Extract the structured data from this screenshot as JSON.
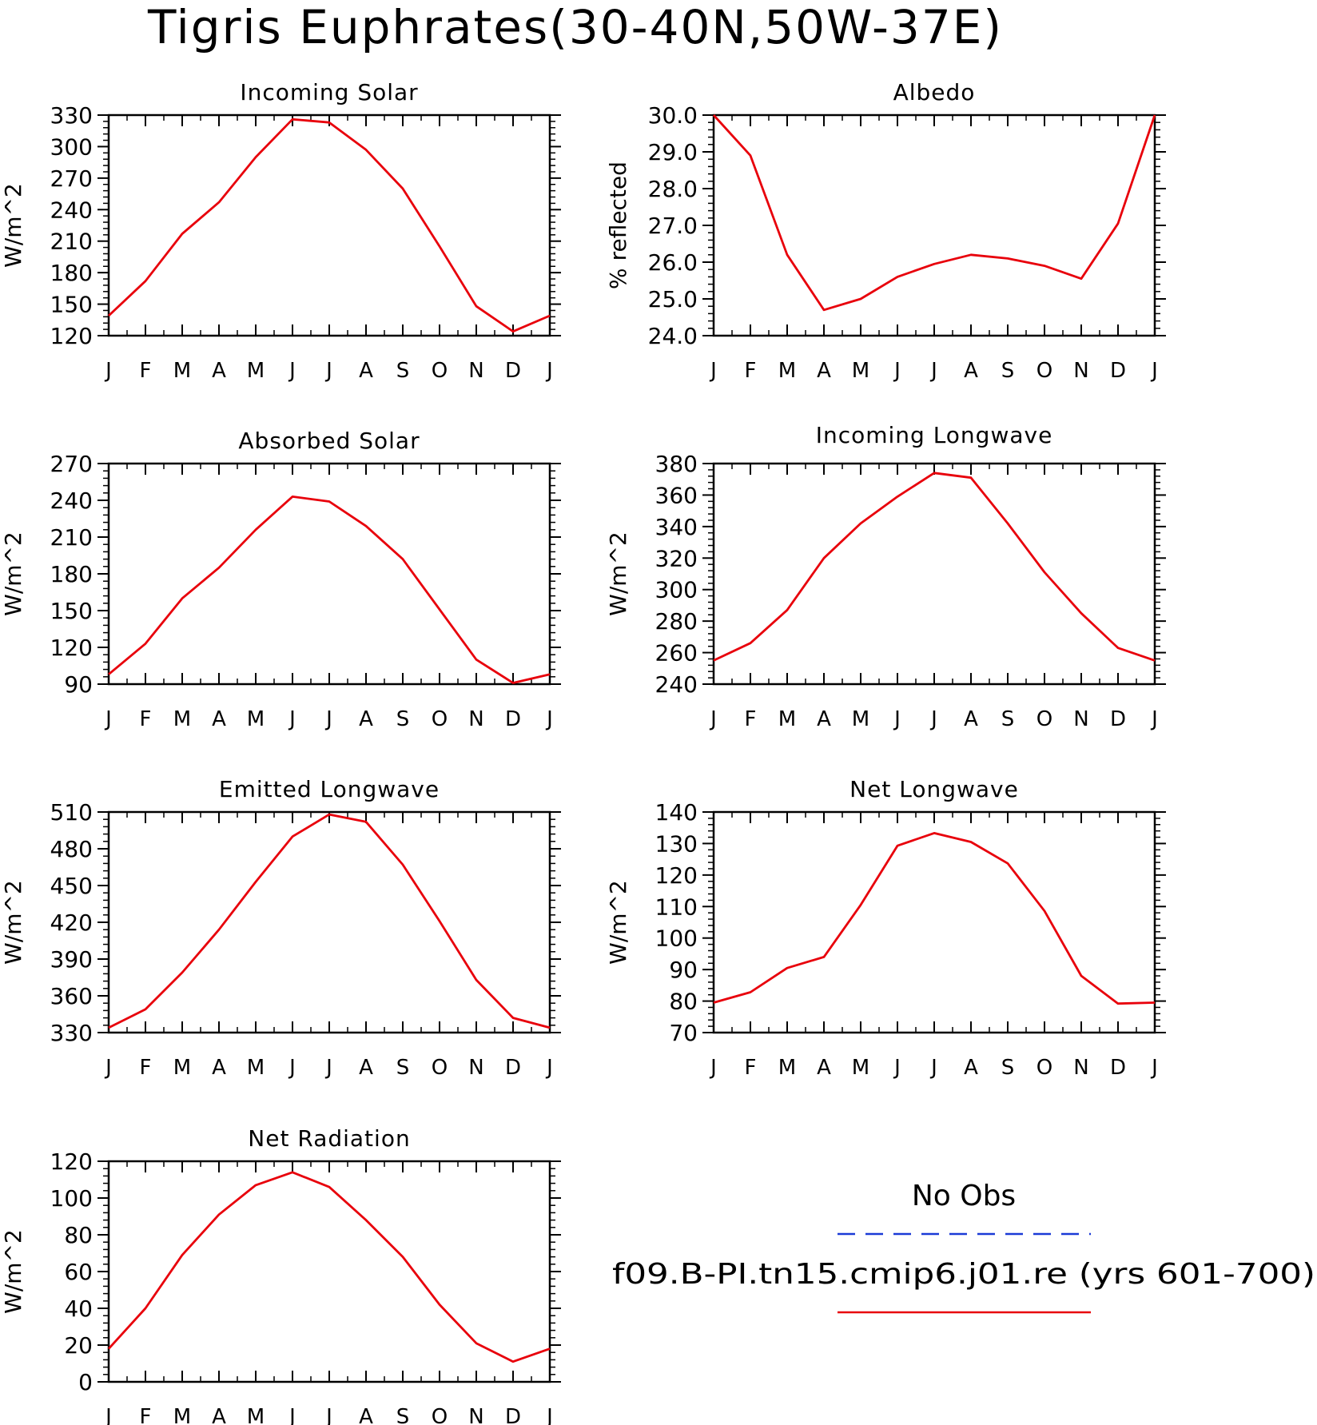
{
  "title": "Tigris Euphrates(30-40N,50W-37E)",
  "month_labels": [
    "J",
    "F",
    "M",
    "A",
    "M",
    "J",
    "J",
    "A",
    "S",
    "O",
    "N",
    "D",
    "J"
  ],
  "legend": {
    "obs_label": "No Obs",
    "obs_color": "#1a3ad6",
    "model_label": "f09.B-PI.tn15.cmip6.j01.re (yrs 601-700)",
    "model_color": "#e8000b"
  },
  "chart_data": [
    {
      "type": "line",
      "title": "Incoming Solar",
      "ylabel": "W/m^2",
      "ylim": [
        120,
        330
      ],
      "yticks": [
        "120",
        "150",
        "180",
        "210",
        "240",
        "270",
        "300",
        "330"
      ],
      "x": [
        "J",
        "F",
        "M",
        "A",
        "M",
        "J",
        "J",
        "A",
        "S",
        "O",
        "N",
        "D",
        "J"
      ],
      "series": [
        {
          "name": "f09.B-PI.tn15.cmip6.j01.re (yrs 601-700)",
          "values": [
            139,
            172,
            217,
            247,
            290,
            326,
            323,
            297,
            260,
            205,
            148,
            124,
            139
          ]
        }
      ]
    },
    {
      "type": "line",
      "title": "Albedo",
      "ylabel": "% reflected",
      "ylim": [
        24.0,
        30.0
      ],
      "yticks": [
        "24.0",
        "25.0",
        "26.0",
        "27.0",
        "28.0",
        "29.0",
        "30.0"
      ],
      "x": [
        "J",
        "F",
        "M",
        "A",
        "M",
        "J",
        "J",
        "A",
        "S",
        "O",
        "N",
        "D",
        "J"
      ],
      "series": [
        {
          "name": "f09.B-PI.tn15.cmip6.j01.re (yrs 601-700)",
          "values": [
            30.0,
            28.9,
            26.2,
            24.7,
            25.0,
            25.6,
            25.95,
            26.2,
            26.1,
            25.9,
            25.55,
            27.05,
            30.0
          ]
        }
      ]
    },
    {
      "type": "line",
      "title": "Absorbed Solar",
      "ylabel": "W/m^2",
      "ylim": [
        90,
        270
      ],
      "yticks": [
        "90",
        "120",
        "150",
        "180",
        "210",
        "240",
        "270"
      ],
      "x": [
        "J",
        "F",
        "M",
        "A",
        "M",
        "J",
        "J",
        "A",
        "S",
        "O",
        "N",
        "D",
        "J"
      ],
      "series": [
        {
          "name": "f09.B-PI.tn15.cmip6.j01.re (yrs 601-700)",
          "values": [
            98,
            123,
            160,
            185,
            216,
            243,
            239,
            219,
            192,
            151,
            110,
            91,
            98
          ]
        }
      ]
    },
    {
      "type": "line",
      "title": "Incoming Longwave",
      "ylabel": "W/m^2",
      "ylim": [
        240,
        380
      ],
      "yticks": [
        "240",
        "260",
        "280",
        "300",
        "320",
        "340",
        "360",
        "380"
      ],
      "x": [
        "J",
        "F",
        "M",
        "A",
        "M",
        "J",
        "J",
        "A",
        "S",
        "O",
        "N",
        "D",
        "J"
      ],
      "series": [
        {
          "name": "f09.B-PI.tn15.cmip6.j01.re (yrs 601-700)",
          "values": [
            255,
            266,
            287,
            320,
            342,
            359,
            374,
            371,
            342,
            311,
            285,
            263,
            255
          ]
        }
      ]
    },
    {
      "type": "line",
      "title": "Emitted Longwave",
      "ylabel": "W/m^2",
      "ylim": [
        330,
        510
      ],
      "yticks": [
        "330",
        "360",
        "390",
        "420",
        "450",
        "480",
        "510"
      ],
      "x": [
        "J",
        "F",
        "M",
        "A",
        "M",
        "J",
        "J",
        "A",
        "S",
        "O",
        "N",
        "D",
        "J"
      ],
      "series": [
        {
          "name": "f09.B-PI.tn15.cmip6.j01.re (yrs 601-700)",
          "values": [
            334,
            349,
            379,
            414,
            453,
            490,
            508,
            502,
            467,
            421,
            373,
            342,
            334
          ]
        }
      ]
    },
    {
      "type": "line",
      "title": "Net Longwave",
      "ylabel": "W/m^2",
      "ylim": [
        70,
        140
      ],
      "yticks": [
        "70",
        "80",
        "90",
        "100",
        "110",
        "120",
        "130",
        "140"
      ],
      "x": [
        "J",
        "F",
        "M",
        "A",
        "M",
        "J",
        "J",
        "A",
        "S",
        "O",
        "N",
        "D",
        "J"
      ],
      "series": [
        {
          "name": "f09.B-PI.tn15.cmip6.j01.re (yrs 601-700)",
          "values": [
            79.5,
            82.8,
            90.5,
            94.0,
            110.5,
            129.3,
            133.3,
            130.5,
            123.7,
            108.6,
            88.0,
            79.2,
            79.5
          ]
        }
      ]
    },
    {
      "type": "line",
      "title": "Net Radiation",
      "ylabel": "W/m^2",
      "ylim": [
        0,
        120
      ],
      "yticks": [
        "0",
        "20",
        "40",
        "60",
        "80",
        "100",
        "120"
      ],
      "x": [
        "J",
        "F",
        "M",
        "A",
        "M",
        "J",
        "J",
        "A",
        "S",
        "O",
        "N",
        "D",
        "J"
      ],
      "series": [
        {
          "name": "f09.B-PI.tn15.cmip6.j01.re (yrs 601-700)",
          "values": [
            18,
            40,
            69,
            91,
            107,
            114,
            106,
            88,
            68,
            42,
            21,
            11,
            18
          ]
        }
      ]
    }
  ]
}
